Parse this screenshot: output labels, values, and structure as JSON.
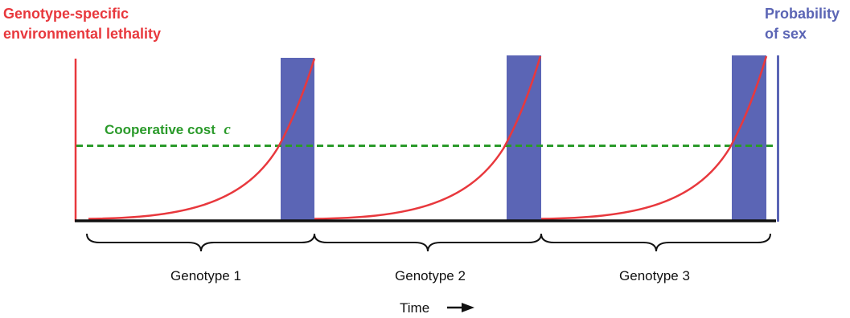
{
  "left_axis_label": [
    "Genotype-specific",
    "environmental lethality"
  ],
  "right_axis_label": [
    "Probability",
    "of sex"
  ],
  "cost_label": "Cooperative cost",
  "cost_symbol": "c",
  "segments": [
    {
      "label": "Genotype 1"
    },
    {
      "label": "Genotype 2"
    },
    {
      "label": "Genotype 3"
    }
  ],
  "time_label": "Time",
  "colors": {
    "lethality": "#e8383d",
    "sex_probability": "#5b65b5",
    "cooperative_cost": "#2a9a2a",
    "axis": "#111111"
  },
  "icons": {
    "time_arrow": "right-arrow-icon",
    "segment_brace": "curly-brace-icon"
  }
}
